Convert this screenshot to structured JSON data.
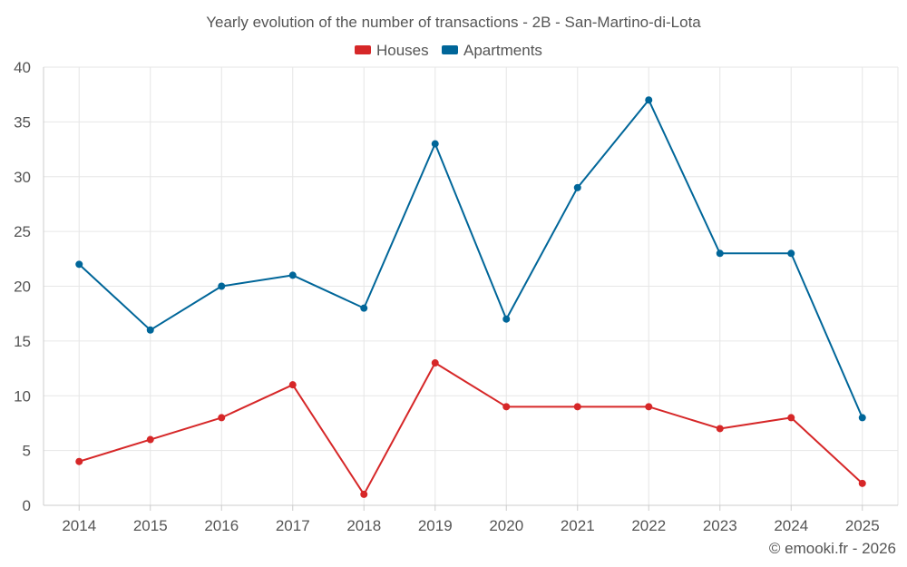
{
  "chart_data": {
    "type": "line",
    "title": "Yearly evolution of the number of transactions - 2B - San-Martino-di-Lota",
    "categories": [
      "2014",
      "2015",
      "2016",
      "2017",
      "2018",
      "2019",
      "2020",
      "2021",
      "2022",
      "2023",
      "2024",
      "2025"
    ],
    "ylim": [
      0,
      40
    ],
    "yticks": [
      "0",
      "5",
      "10",
      "15",
      "20",
      "25",
      "30",
      "35",
      "40"
    ],
    "grid": true,
    "legend_position": "top-center",
    "series": [
      {
        "name": "Houses",
        "color": "#d62728",
        "values": [
          4,
          6,
          8,
          11,
          1,
          13,
          9,
          9,
          9,
          7,
          8,
          2
        ]
      },
      {
        "name": "Apartments",
        "color": "#006699",
        "values": [
          22,
          16,
          20,
          21,
          18,
          33,
          17,
          29,
          37,
          23,
          23,
          8
        ]
      }
    ]
  },
  "credit": "© emooki.fr - 2026"
}
